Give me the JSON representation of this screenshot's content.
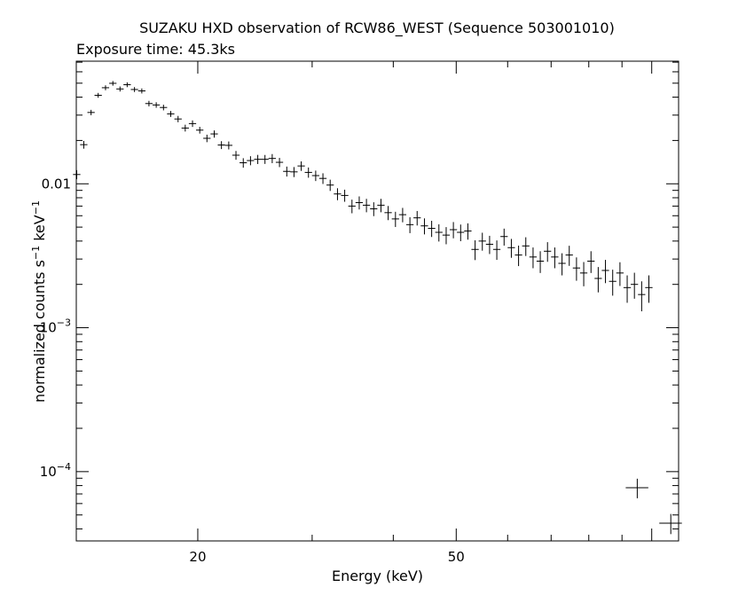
{
  "chart_data": {
    "type": "scatter",
    "title": "SUZAKU HXD observation of RCW86_WEST (Sequence 503001010)",
    "subtitle": "Exposure time: 45.3ks",
    "xlabel": "Energy (keV)",
    "ylabel": {
      "prefix": "normalized counts s",
      "exp1": "−1",
      "mid": " keV",
      "exp2": "−1"
    },
    "x_scale": "log",
    "y_scale": "log",
    "xlim": [
      13,
      110
    ],
    "ylim": [
      3.3e-05,
      0.0711
    ],
    "x_tick_labels": [
      {
        "value": 20,
        "label": "20"
      },
      {
        "value": 50,
        "label": "50"
      }
    ],
    "y_tick_labels": [
      {
        "value": 0.01,
        "label": "0.01",
        "base": "",
        "exp": ""
      },
      {
        "value": 0.001,
        "label": "",
        "base": "10",
        "exp": "−3"
      },
      {
        "value": 0.0001,
        "label": "",
        "base": "10",
        "exp": "−4"
      }
    ],
    "grid": false,
    "legend": "none",
    "marker_color": "#000000",
    "series": [
      {
        "points": [
          [
            13.02,
            0.0116,
            0.00084
          ],
          [
            13.35,
            0.0187,
            0.00116
          ],
          [
            13.7,
            0.0313,
            0.00134
          ],
          [
            14.05,
            0.0412,
            0.00159
          ],
          [
            14.42,
            0.0465,
            0.00182
          ],
          [
            14.8,
            0.0499,
            0.00186
          ],
          [
            15.18,
            0.0456,
            0.00182
          ],
          [
            15.57,
            0.0488,
            0.00186
          ],
          [
            15.98,
            0.0452,
            0.00178
          ],
          [
            16.4,
            0.0442,
            0.00176
          ],
          [
            16.82,
            0.0361,
            0.00159
          ],
          [
            17.26,
            0.0353,
            0.00155
          ],
          [
            17.71,
            0.0339,
            0.00152
          ],
          [
            18.17,
            0.0306,
            0.00145
          ],
          [
            18.65,
            0.0282,
            0.00142
          ],
          [
            19.13,
            0.0244,
            0.00133
          ],
          [
            19.63,
            0.0262,
            0.00137
          ],
          [
            20.14,
            0.0236,
            0.00127
          ],
          [
            20.66,
            0.0207,
            0.00124
          ],
          [
            21.2,
            0.0222,
            0.00128
          ],
          [
            21.75,
            0.0186,
            0.00117
          ],
          [
            22.32,
            0.0185,
            0.00117
          ],
          [
            22.9,
            0.0158,
            0.00111
          ],
          [
            23.5,
            0.014,
            0.00106
          ],
          [
            24.11,
            0.0145,
            0.00105
          ],
          [
            24.74,
            0.0148,
            0.00108
          ],
          [
            25.38,
            0.0148,
            0.00106
          ],
          [
            26.04,
            0.015,
            0.00109
          ],
          [
            26.72,
            0.0141,
            0.00104
          ],
          [
            27.42,
            0.0122,
            0.00097
          ],
          [
            28.13,
            0.0121,
            0.00097
          ],
          [
            28.86,
            0.0133,
            0.00101
          ],
          [
            29.61,
            0.012,
            0.00098
          ],
          [
            30.38,
            0.0114,
            0.00095
          ],
          [
            31.17,
            0.0109,
            0.00093
          ],
          [
            31.98,
            0.0098,
            0.00088
          ],
          [
            32.82,
            0.0085,
            0.00081
          ],
          [
            33.67,
            0.0083,
            0.0008
          ],
          [
            34.55,
            0.007,
            0.00076
          ],
          [
            35.45,
            0.0074,
            0.00077
          ],
          [
            36.37,
            0.0071,
            0.00076
          ],
          [
            37.32,
            0.0067,
            0.00074
          ],
          [
            38.29,
            0.0071,
            0.00076
          ],
          [
            39.28,
            0.0063,
            0.00071
          ],
          [
            40.31,
            0.0057,
            0.00069
          ],
          [
            41.35,
            0.0061,
            0.0007
          ],
          [
            42.43,
            0.0052,
            0.00066
          ],
          [
            43.53,
            0.0058,
            0.00067
          ],
          [
            44.67,
            0.0051,
            0.00065
          ],
          [
            45.83,
            0.0049,
            0.00063
          ],
          [
            47.02,
            0.0046,
            0.00063
          ],
          [
            48.25,
            0.0044,
            0.0006
          ],
          [
            49.5,
            0.0048,
            0.00062
          ],
          [
            50.79,
            0.0046,
            0.00061
          ],
          [
            52.11,
            0.0047,
            0.00061
          ],
          [
            53.46,
            0.0035,
            0.00055
          ],
          [
            54.85,
            0.004,
            0.00057
          ],
          [
            56.28,
            0.0038,
            0.00055
          ],
          [
            57.74,
            0.0035,
            0.00054
          ],
          [
            59.25,
            0.0043,
            0.00058
          ],
          [
            60.79,
            0.0036,
            0.00054
          ],
          [
            62.37,
            0.0032,
            0.00052
          ],
          [
            63.99,
            0.0037,
            0.00055
          ],
          [
            65.66,
            0.0031,
            0.00051
          ],
          [
            67.36,
            0.0029,
            0.0005
          ],
          [
            69.11,
            0.0034,
            0.00053
          ],
          [
            70.91,
            0.0031,
            0.00051
          ],
          [
            72.76,
            0.0028,
            0.00049
          ],
          [
            74.65,
            0.0032,
            0.00051
          ],
          [
            76.59,
            0.0026,
            0.00048
          ],
          [
            78.58,
            0.0024,
            0.00046
          ],
          [
            80.63,
            0.0029,
            0.0005
          ],
          [
            82.72,
            0.0022,
            0.00044
          ],
          [
            84.87,
            0.0025,
            0.00046
          ],
          [
            87.08,
            0.0021,
            0.00043
          ],
          [
            89.35,
            0.0024,
            0.00045
          ],
          [
            91.67,
            0.0019,
            0.00041
          ],
          [
            94.05,
            0.002,
            0.00041
          ],
          [
            96.5,
            0.0017,
            0.0004
          ],
          [
            99.0,
            0.0019,
            0.00041
          ]
        ],
        "xerr_rel": 0.013
      },
      {
        "points": [
          [
            95.0,
            7.73e-05,
            1.2e-05
          ],
          [
            107.0,
            4.38e-05,
            7e-06
          ]
        ],
        "xerr_rel": 0.04
      }
    ]
  }
}
